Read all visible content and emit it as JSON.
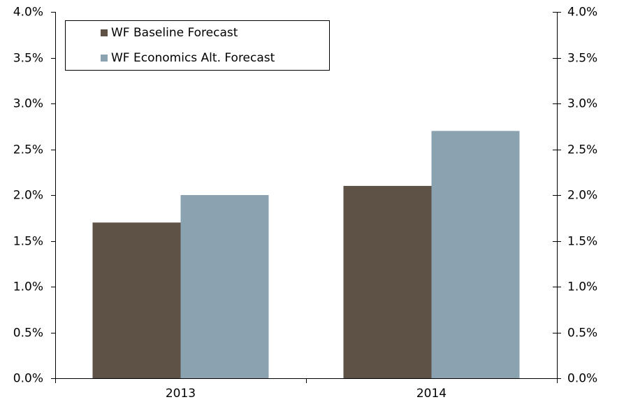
{
  "chart_data": {
    "type": "bar",
    "categories": [
      "2013",
      "2014"
    ],
    "series": [
      {
        "name": "WF Baseline Forecast",
        "color": "#5e5246",
        "values": [
          1.7,
          2.1
        ]
      },
      {
        "name": "WF Economics Alt. Forecast",
        "color": "#8ba3b0",
        "values": [
          2.0,
          2.7
        ]
      }
    ],
    "ylim": [
      0,
      4
    ],
    "yticks": [
      {
        "value": 0,
        "label": "0.0%"
      },
      {
        "value": 0.5,
        "label": "0.5%"
      },
      {
        "value": 1,
        "label": "1.0%"
      },
      {
        "value": 1.5,
        "label": "1.5%"
      },
      {
        "value": 2,
        "label": "2.0%"
      },
      {
        "value": 2.5,
        "label": "2.5%"
      },
      {
        "value": 3,
        "label": "3.0%"
      },
      {
        "value": 3.5,
        "label": "3.5%"
      },
      {
        "value": 4,
        "label": "4.0%"
      }
    ],
    "y2lim": [
      0,
      4
    ],
    "y2ticks": [
      {
        "value": 0,
        "label": "0.0%"
      },
      {
        "value": 0.5,
        "label": "0.5%"
      },
      {
        "value": 1,
        "label": "1.0%"
      },
      {
        "value": 1.5,
        "label": "1.5%"
      },
      {
        "value": 2,
        "label": "2.0%"
      },
      {
        "value": 2.5,
        "label": "2.5%"
      },
      {
        "value": 3,
        "label": "3.0%"
      },
      {
        "value": 3.5,
        "label": "3.5%"
      },
      {
        "value": 4,
        "label": "4.0%"
      }
    ],
    "grid": false,
    "legend": "top-left"
  }
}
